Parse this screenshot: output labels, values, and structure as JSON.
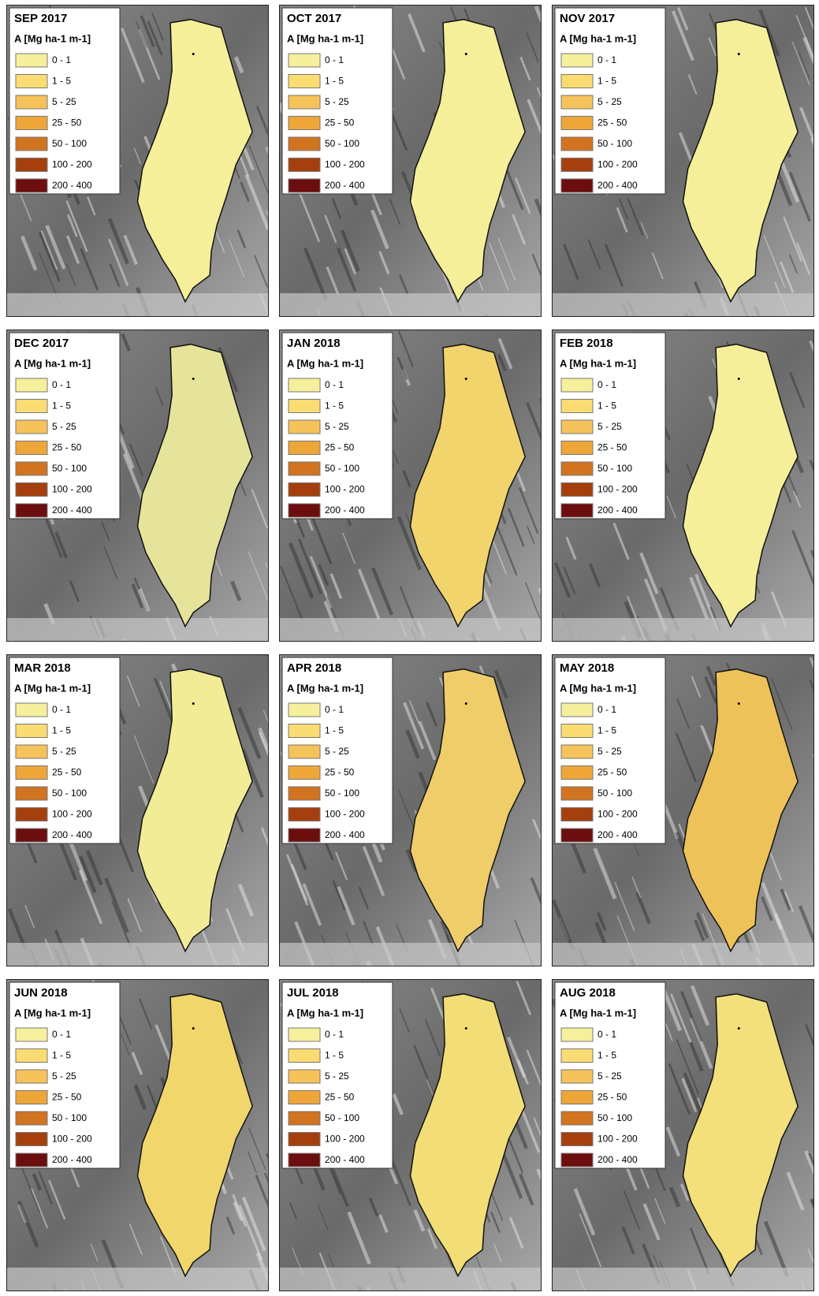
{
  "legend": {
    "title": "A [Mg ha-1 m-1]",
    "classes": [
      {
        "label": "0 - 1",
        "color": "#f6f09c"
      },
      {
        "label": "1 - 5",
        "color": "#fbdc72"
      },
      {
        "label": "5 - 25",
        "color": "#f6c25a"
      },
      {
        "label": "25 - 50",
        "color": "#efa639"
      },
      {
        "label": "50 - 100",
        "color": "#d2731f"
      },
      {
        "label": "100 - 200",
        "color": "#a5400e"
      },
      {
        "label": "200 - 400",
        "color": "#6c0d0e"
      }
    ]
  },
  "panels": [
    {
      "title": "SEP 2017",
      "fill": "#f5ef9a"
    },
    {
      "title": "OCT 2017",
      "fill": "#f5ef9a"
    },
    {
      "title": "NOV 2017",
      "fill": "#f5ef9a"
    },
    {
      "title": "DEC 2017",
      "fill": "#e6e49a"
    },
    {
      "title": "JAN 2018",
      "fill": "#f2d46c"
    },
    {
      "title": "FEB 2018",
      "fill": "#f5ef9a"
    },
    {
      "title": "MAR 2018",
      "fill": "#f2ec96"
    },
    {
      "title": "APR 2018",
      "fill": "#efcd68"
    },
    {
      "title": "MAY 2018",
      "fill": "#edc258"
    },
    {
      "title": "JUN 2018",
      "fill": "#f1d66c"
    },
    {
      "title": "JUL 2018",
      "fill": "#f3dd76"
    },
    {
      "title": "AUG 2018",
      "fill": "#f3e07a"
    }
  ]
}
